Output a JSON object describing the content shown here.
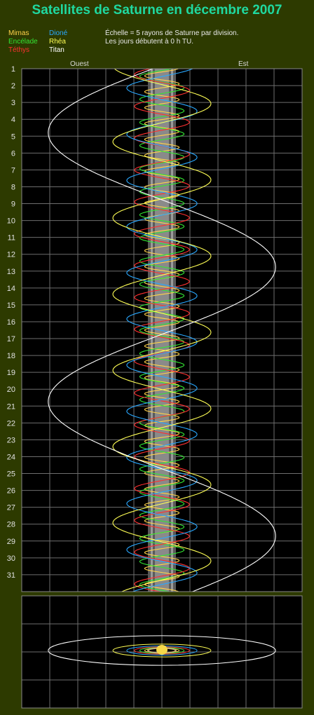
{
  "title": "Satellites de Saturne en décembre 2007",
  "notes": {
    "scale": "Échelle = 5 rayons de Saturne par division.",
    "time": "Les jours débutent à 0 h TU."
  },
  "directions": {
    "west": "Ouest",
    "east": "Est"
  },
  "colors": {
    "Mimas": "#ffd24a",
    "Encélade": "#33e533",
    "Téthys": "#ff3030",
    "Dioné": "#29a8ff",
    "Rhéa": "#ffff55",
    "Titan": "#ffffff",
    "planet": "#8a8a8a",
    "grid": "#6e6e6e"
  },
  "chart_data": {
    "type": "line",
    "title": "Satellites de Saturne en décembre 2007",
    "xlabel": "",
    "ylabel": "",
    "x_unit_note": "Échelle = 5 rayons de Saturne par division.",
    "grid": true,
    "y_categories": [
      1,
      2,
      3,
      4,
      5,
      6,
      7,
      8,
      9,
      10,
      11,
      12,
      13,
      14,
      15,
      16,
      17,
      18,
      19,
      20,
      21,
      22,
      23,
      24,
      25,
      26,
      27,
      28,
      29,
      30,
      31
    ],
    "xlim_saturn_radii": [
      -30,
      25
    ],
    "day_range": [
      1,
      32
    ],
    "series": [
      {
        "name": "Mimas",
        "amplitude_radii": 3.08,
        "period_days": 0.942,
        "phase": 0.3
      },
      {
        "name": "Encélade",
        "amplitude_radii": 3.95,
        "period_days": 1.37,
        "phase": 1.1
      },
      {
        "name": "Téthys",
        "amplitude_radii": 4.89,
        "period_days": 1.888,
        "phase": 2.0
      },
      {
        "name": "Dioné",
        "amplitude_radii": 6.26,
        "period_days": 2.737,
        "phase": 0.5
      },
      {
        "name": "Rhéa",
        "amplitude_radii": 8.74,
        "period_days": 4.518,
        "phase": 3.4
      },
      {
        "name": "Titan",
        "amplitude_radii": 20.27,
        "period_days": 15.945,
        "phase": 1.65
      }
    ]
  }
}
